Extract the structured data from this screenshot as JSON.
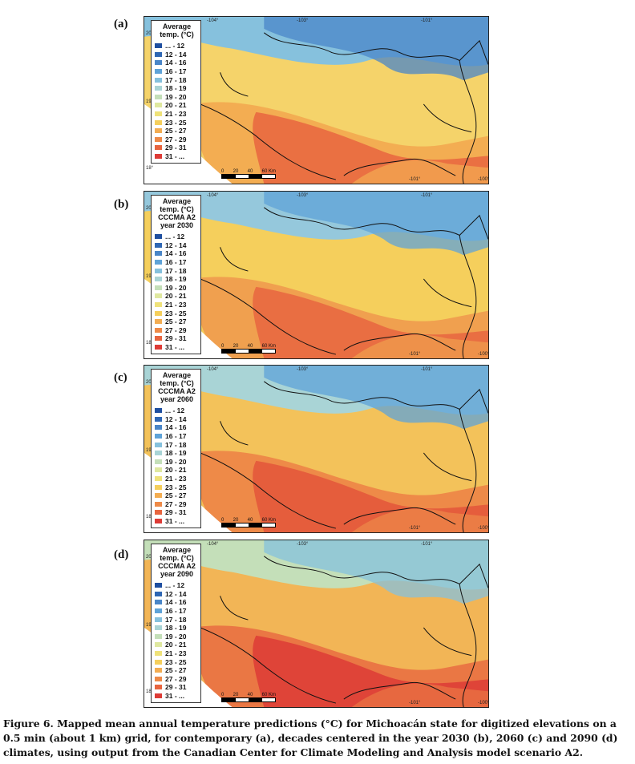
{
  "panels": [
    {
      "label": "(a)",
      "legend_title": [
        "Average",
        "temp. (°C)"
      ],
      "variant": "a"
    },
    {
      "label": "(b)",
      "legend_title": [
        "Average",
        "temp. (°C)",
        "CCCMA A2",
        "year 2030"
      ],
      "variant": "b"
    },
    {
      "label": "(c)",
      "legend_title": [
        "Average",
        "temp. (°C)",
        "CCCMA A2",
        "year 2060"
      ],
      "variant": "c"
    },
    {
      "label": "(d)",
      "legend_title": [
        "Average",
        "temp. (°C)",
        "CCCMA A2",
        "year 2090"
      ],
      "variant": "d"
    }
  ],
  "legend_classes": [
    {
      "label": "...  - 12",
      "color": "#1f4fa0"
    },
    {
      "label": "12 - 14",
      "color": "#2f67b4"
    },
    {
      "label": "14 - 16",
      "color": "#4a86c8"
    },
    {
      "label": "16 - 17",
      "color": "#5fa3d8"
    },
    {
      "label": "17 - 18",
      "color": "#86c1dd"
    },
    {
      "label": "18 - 19",
      "color": "#a9d4d6"
    },
    {
      "label": "19 - 20",
      "color": "#c4dfb9"
    },
    {
      "label": "20 - 21",
      "color": "#dfe8a0"
    },
    {
      "label": "21 - 23",
      "color": "#efe27a"
    },
    {
      "label": "23 - 25",
      "color": "#f5cf5c"
    },
    {
      "label": "25 - 27",
      "color": "#f3ad52"
    },
    {
      "label": "27 - 29",
      "color": "#ee8a48"
    },
    {
      "label": "29 - 31",
      "color": "#e8653f"
    },
    {
      "label": "31 - ...",
      "color": "#dd3b36"
    }
  ],
  "coordinates": {
    "lon_labels": [
      "-104°",
      "-103°",
      "-101°"
    ],
    "lon_bottom": [
      "-101°",
      "-100°"
    ],
    "lat_labels": [
      "20°",
      "19°",
      "18°"
    ]
  },
  "scale": {
    "ticks": [
      "0",
      "20",
      "40",
      "60 Km"
    ]
  },
  "caption": "Figure 6. Mapped mean annual temperature predictions (°C) for Michoacán state for digitized elevations on a 0.5 min (about 1 km) grid, for contemporary (a), decades centered in the year 2030 (b), 2060 (c) and 2090 (d) climates, using output from the Canadian Center for Climate Modeling and Analysis model scenario A2."
}
